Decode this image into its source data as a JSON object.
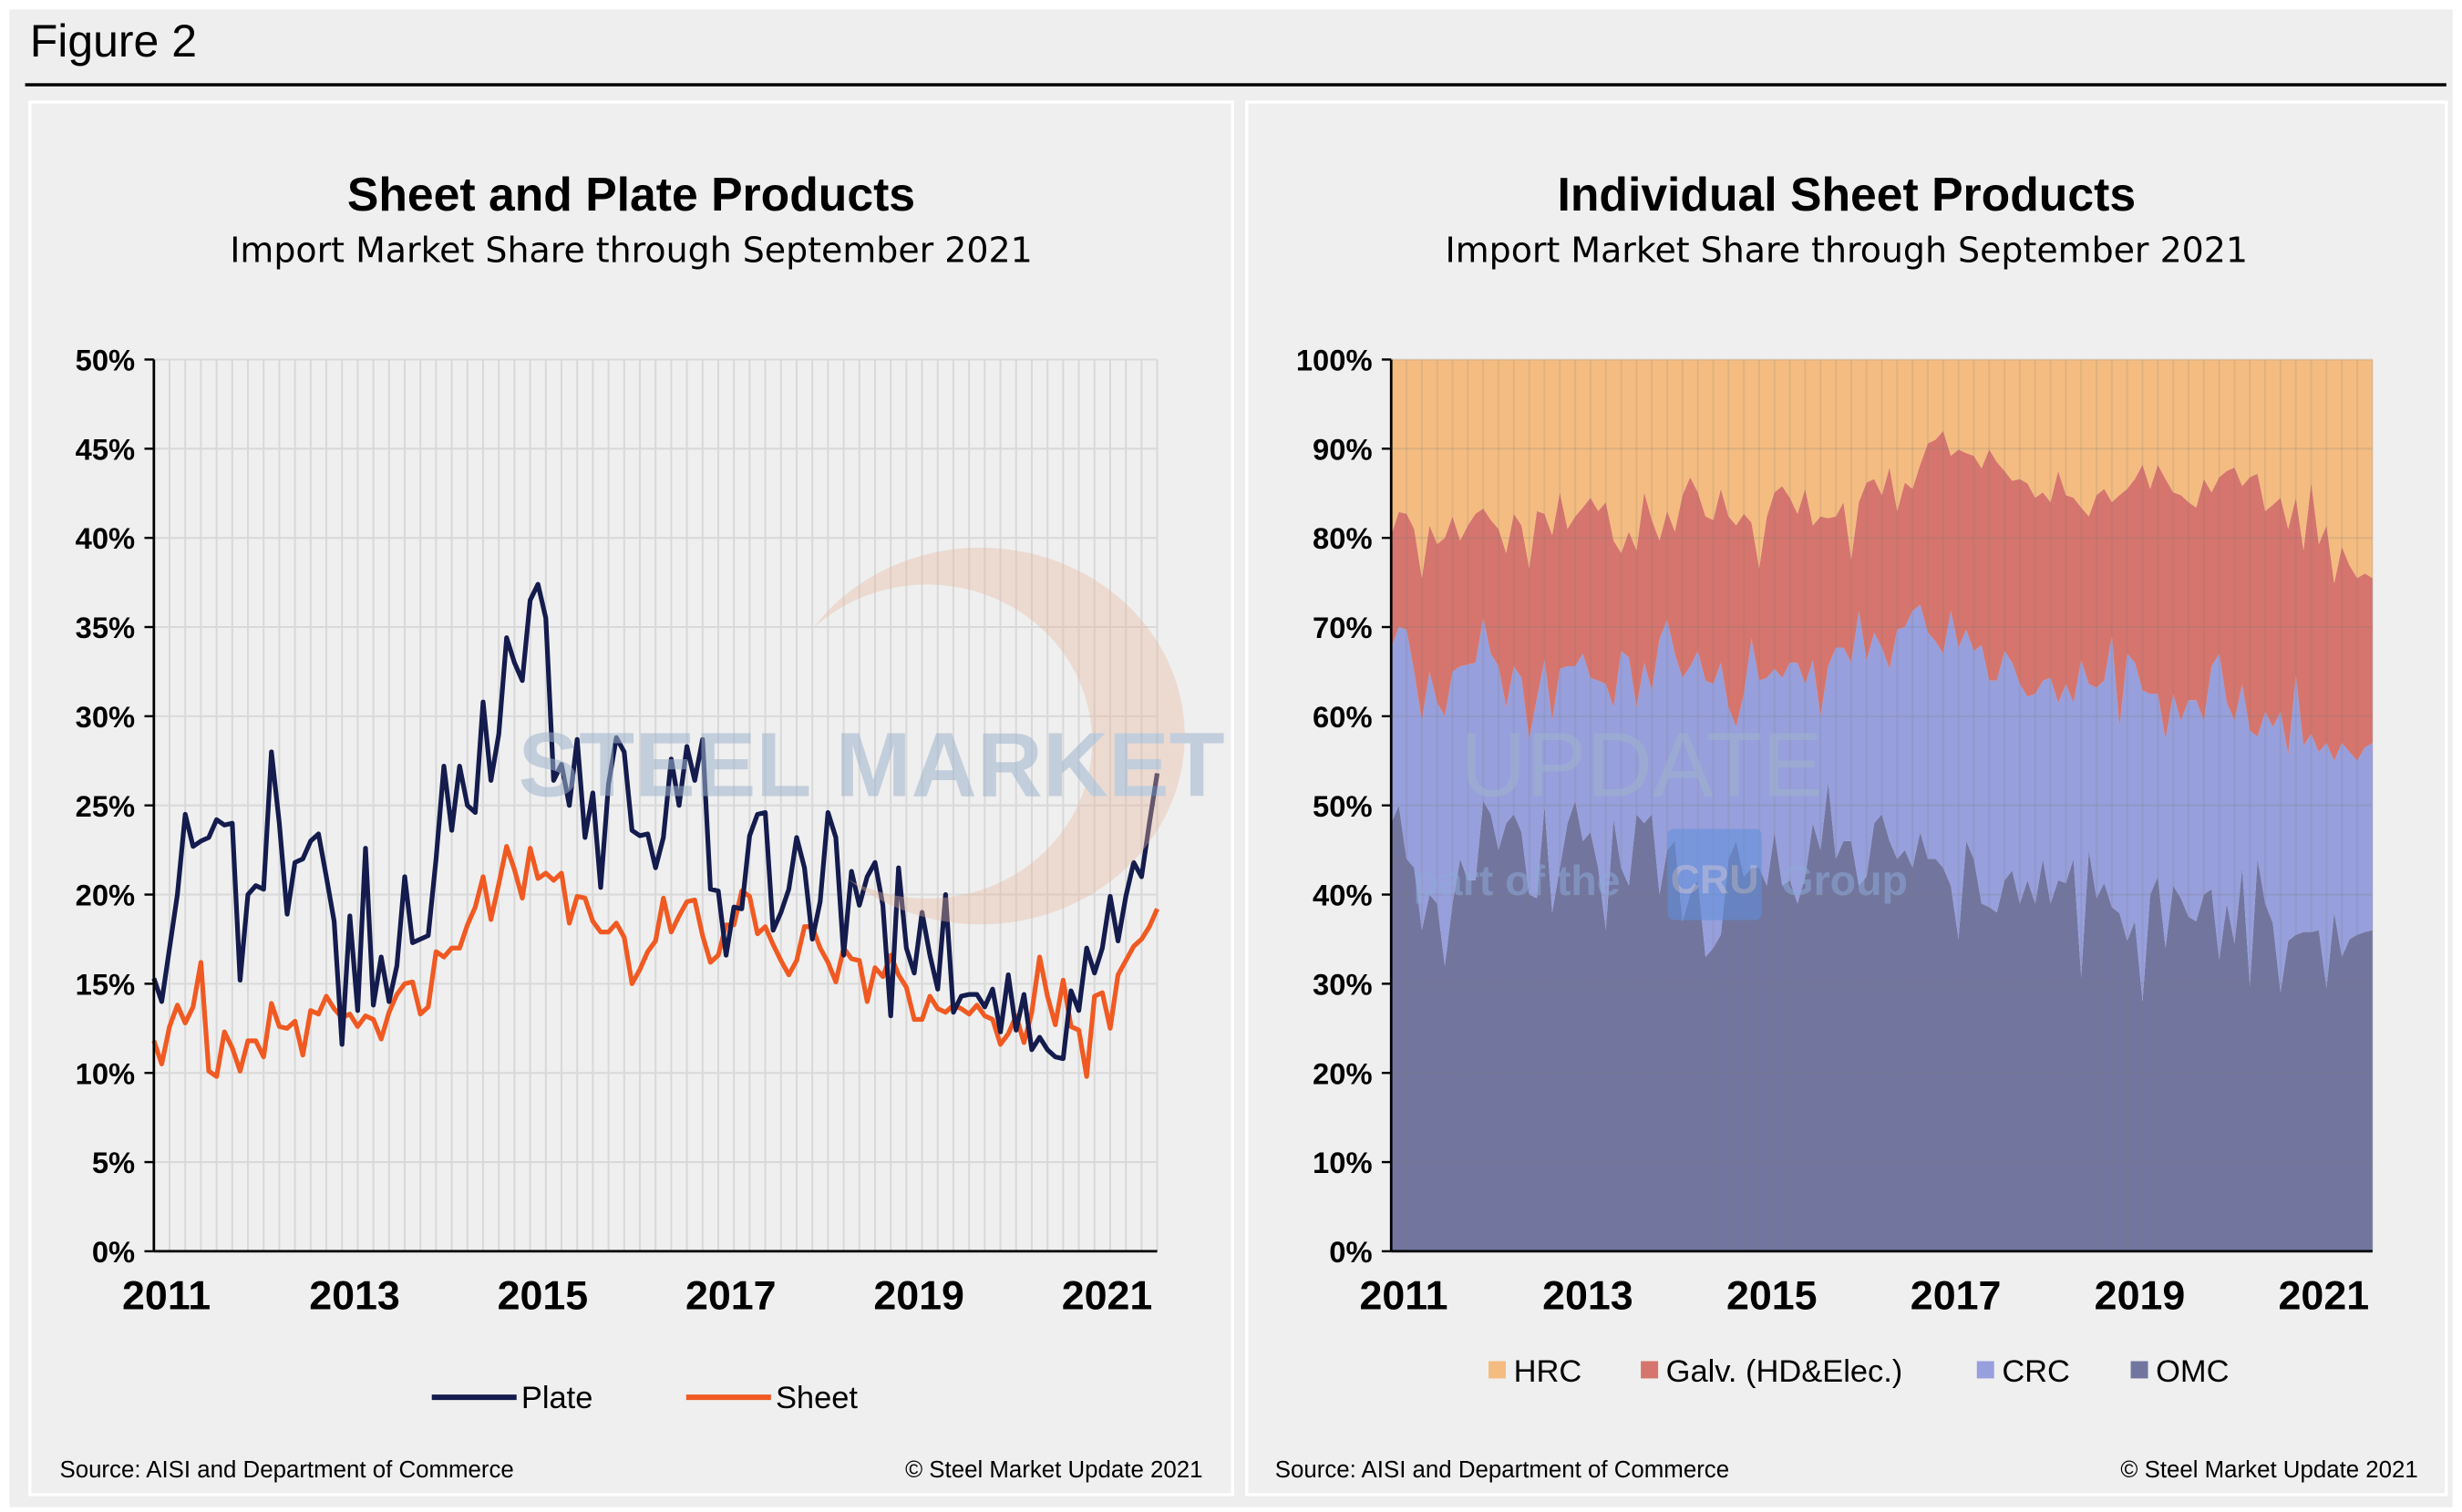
{
  "figure_title": "Figure 2",
  "watermark": {
    "brand": "STEEL MARKET UPDATE",
    "tagline_pre": "part of the",
    "tagline_logo": "CRU",
    "tagline_post": "Group"
  },
  "chart_data": [
    {
      "type": "line",
      "title": "Sheet and Plate Products",
      "subtitle": "Import Market Share through September 2021",
      "x_start": "2011-01",
      "x_frequency": "monthly",
      "x_end": "2021-09",
      "x_tick_labels": [
        "2011",
        "2013",
        "2015",
        "2017",
        "2019",
        "2021"
      ],
      "y_tick_labels": [
        "0%",
        "5%",
        "10%",
        "15%",
        "20%",
        "25%",
        "30%",
        "35%",
        "40%",
        "45%",
        "50%"
      ],
      "ylim": [
        0,
        50
      ],
      "y_unit": "%",
      "grid": true,
      "legend": "bottom",
      "series": [
        {
          "name": "Plate",
          "color": "#141B4D",
          "values": [
            15.3,
            14,
            17,
            20,
            24.5,
            22.7,
            23,
            23.2,
            24.2,
            23.9,
            24,
            15.2,
            20,
            20.5,
            20.3,
            28,
            24,
            18.9,
            21.8,
            22,
            23,
            23.4,
            21,
            18.5,
            11.6,
            18.8,
            13.5,
            22.6,
            13.8,
            16.5,
            14,
            16,
            21,
            17.3,
            17.5,
            17.7,
            22,
            27.2,
            23.6,
            27.2,
            25,
            24.6,
            30.8,
            26.4,
            29,
            34.4,
            33,
            32,
            36.5,
            37.4,
            35.5,
            26.4,
            27.3,
            25,
            28.7,
            23.2,
            25.7,
            20.4,
            26.2,
            28.8,
            28,
            23.6,
            23.3,
            23.4,
            21.5,
            23.2,
            27.6,
            25,
            28.3,
            26.4,
            28.7,
            20.3,
            20.2,
            16.6,
            19.3,
            19.2,
            23.3,
            24.5,
            24.6,
            18,
            19,
            20.3,
            23.2,
            21.5,
            17.5,
            19.6,
            24.6,
            23.2,
            16.6,
            21.3,
            19.4,
            21,
            21.8,
            19.4,
            13.2,
            21.5,
            17,
            15.6,
            19,
            16.6,
            14.7,
            20,
            13.4,
            14.3,
            14.4,
            14.4,
            13.7,
            14.7,
            12.3,
            15.5,
            12.4,
            14.4,
            11.3,
            12,
            11.3,
            10.9,
            10.8,
            14.6,
            13.5,
            17,
            15.6,
            17,
            19.9,
            17.4,
            19.9,
            21.8,
            21,
            24,
            26.8
          ]
        },
        {
          "name": "Sheet",
          "color": "#F05A22",
          "values": [
            11.8,
            10.5,
            12.6,
            13.8,
            12.8,
            13.7,
            16.2,
            10.1,
            9.8,
            12.3,
            11.4,
            10.1,
            11.8,
            11.8,
            10.9,
            13.9,
            12.6,
            12.5,
            12.9,
            11,
            13.5,
            13.3,
            14.3,
            13.6,
            13.1,
            13.3,
            12.6,
            13.2,
            13,
            11.9,
            13.4,
            14.4,
            15,
            15.1,
            13.3,
            13.7,
            16.8,
            16.5,
            17,
            17,
            18.3,
            19.3,
            21,
            18.6,
            20.6,
            22.7,
            21.4,
            19.8,
            22.6,
            20.9,
            21.2,
            20.8,
            21.2,
            18.4,
            19.9,
            19.8,
            18.5,
            17.9,
            17.9,
            18.4,
            17.6,
            15,
            15.8,
            16.8,
            17.4,
            19.8,
            17.9,
            18.8,
            19.6,
            19.7,
            17.7,
            16.2,
            16.6,
            18.3,
            18.3,
            20.2,
            19.9,
            17.8,
            18.2,
            17.2,
            16.3,
            15.5,
            16.3,
            18.2,
            18.2,
            17,
            16.2,
            15.1,
            17,
            16.4,
            16.3,
            14,
            15.9,
            15.4,
            16.6,
            15.5,
            14.8,
            13,
            13,
            14.3,
            13.6,
            13.4,
            13.8,
            13.6,
            13.3,
            13.8,
            13.2,
            13,
            11.6,
            12.2,
            13.2,
            11.7,
            13.4,
            16.5,
            14.3,
            12.7,
            15.2,
            12.6,
            12.4,
            9.8,
            14.3,
            14.5,
            12.5,
            15.5,
            16.3,
            17.1,
            17.5,
            18.2,
            19.2
          ]
        }
      ],
      "source": "Source: AISI and Department of Commerce",
      "copyright": "© Steel Market Update 2021"
    },
    {
      "type": "area",
      "stacked": "percent",
      "title": "Individual Sheet Products",
      "subtitle": "Import Market Share through September 2021",
      "x_start": "2011-01",
      "x_frequency": "monthly",
      "x_end": "2021-09",
      "x_tick_labels": [
        "2011",
        "2013",
        "2015",
        "2017",
        "2019",
        "2021"
      ],
      "y_tick_labels": [
        "0%",
        "10%",
        "20%",
        "30%",
        "40%",
        "50%",
        "60%",
        "70%",
        "80%",
        "90%",
        "100%"
      ],
      "ylim": [
        0,
        100
      ],
      "y_unit": "%",
      "grid": true,
      "legend": "bottom",
      "series": [
        {
          "name": "OMC",
          "color": "#72769F",
          "values": [
            48,
            50,
            44,
            43,
            36,
            40,
            39,
            32,
            39,
            44,
            41.6,
            41.6,
            50.5,
            49,
            45,
            48,
            49,
            47,
            40,
            39.6,
            50,
            38,
            43,
            48,
            50.5,
            46,
            47,
            43,
            36,
            48.5,
            43,
            41,
            49,
            48,
            49,
            40,
            45,
            46,
            37,
            40,
            41.6,
            33,
            34,
            35.5,
            44,
            46,
            42,
            43,
            43,
            41,
            47,
            41,
            41.6,
            39,
            42,
            48,
            45,
            52.6,
            44,
            46,
            46,
            41,
            42,
            48,
            49,
            46,
            44,
            45,
            43,
            47,
            44,
            44,
            43,
            41,
            35,
            46,
            44,
            39,
            38.6,
            38,
            41.6,
            42.7,
            39,
            41.6,
            39,
            44,
            39,
            41.6,
            41.3,
            44,
            30.7,
            45,
            39.6,
            41.3,
            38.6,
            37.9,
            34.8,
            37,
            28,
            40,
            42,
            34,
            41,
            39.6,
            37.5,
            37,
            40,
            40.6,
            32.7,
            39,
            34.5,
            43,
            29.7,
            44,
            39,
            36.8,
            29,
            34.8,
            35.5,
            35.8,
            35.8,
            36,
            29.5,
            38,
            33,
            35,
            35.5,
            35.8,
            36
          ]
        },
        {
          "name": "CRC",
          "color": "#979FDC",
          "values": [
            19.7,
            20,
            25.7,
            22,
            23.5,
            25,
            22.5,
            28,
            26,
            21.6,
            24.2,
            24.4,
            20.5,
            18,
            20.6,
            13,
            16.6,
            17.3,
            17.4,
            22.4,
            16.3,
            21.5,
            22.3,
            17.6,
            15.1,
            21,
            17.3,
            21,
            27.6,
            12.5,
            24.3,
            25.6,
            12,
            18,
            13.9,
            28.7,
            25.8,
            21,
            27.3,
            25.6,
            25.7,
            31,
            29.6,
            30.5,
            17,
            12.8,
            20.5,
            25.7,
            21,
            23.3,
            18.3,
            23.3,
            24.4,
            27,
            21.6,
            18.3,
            15,
            13,
            23.7,
            21.7,
            20,
            30.8,
            24.3,
            21.4,
            18.7,
            19.3,
            25.7,
            25,
            28.8,
            25.5,
            25.4,
            24.4,
            24,
            30.8,
            32.7,
            23.7,
            23.3,
            29,
            25.4,
            26,
            25.7,
            23.3,
            24.6,
            20.6,
            23.5,
            20,
            25.3,
            19.9,
            22.3,
            17.5,
            35.6,
            18.6,
            23.6,
            22.7,
            30.4,
            20.9,
            32.2,
            29,
            34.9,
            22.5,
            20.5,
            23.4,
            21.5,
            19.9,
            24.3,
            24.8,
            19.5,
            25,
            34.3,
            22.5,
            25,
            20.6,
            28.7,
            13.7,
            21.5,
            22,
            31.5,
            20.9,
            29.1,
            20.9,
            22.2,
            20,
            27.5,
            17,
            24,
            21,
            19.5,
            20.7,
            21
          ]
        },
        {
          "name": "Galv. (HD&Elec.)",
          "color": "#D5756D",
          "values": [
            12.6,
            12.9,
            13,
            16,
            16,
            16.4,
            17.8,
            20,
            17.4,
            14.1,
            15.6,
            16.7,
            12.3,
            15,
            15.4,
            17.3,
            17.1,
            17.1,
            19.2,
            21,
            16.4,
            20.8,
            19.8,
            15.4,
            16.8,
            16.4,
            20.2,
            19,
            20.4,
            18.7,
            11,
            14.1,
            17.6,
            19.1,
            19.1,
            11,
            12.2,
            13.7,
            20.5,
            21.2,
            17.8,
            18.4,
            18.4,
            19.5,
            21.4,
            22.6,
            20.2,
            13,
            12.6,
            18.1,
            19.8,
            21.5,
            18.5,
            16.7,
            21.9,
            15.1,
            22.4,
            16.6,
            14.7,
            16.3,
            11.6,
            12.2,
            19.9,
            17.2,
            17.1,
            22.6,
            13.3,
            16.2,
            13.7,
            15.7,
            21.2,
            22.6,
            25,
            17.4,
            22.2,
            19.8,
            21.9,
            19.8,
            25.9,
            24.5,
            20.2,
            20.4,
            23,
            23.9,
            22,
            21.1,
            19.7,
            26,
            21.2,
            23,
            17.1,
            18.8,
            21.6,
            21.5,
            15,
            26,
            18.5,
            20.6,
            25.3,
            23,
            25.7,
            29.2,
            22.6,
            25.3,
            22.2,
            21.6,
            27.1,
            19.5,
            19.8,
            26,
            28.4,
            22.2,
            28.4,
            29.5,
            22.5,
            24.9,
            24,
            25.3,
            19.9,
            21.9,
            28.2,
            23.3,
            24.4,
            19.9,
            22,
            20.9,
            20.5,
            19.5,
            18.5
          ]
        },
        {
          "name": "HRC",
          "color": "#F4BC80",
          "values": [
            19.7,
            17.1,
            17.3,
            19,
            24.5,
            18.6,
            20.7,
            20,
            17.6,
            20.3,
            18.6,
            17.3,
            16.7,
            18,
            19,
            21.7,
            17.3,
            18.6,
            23.4,
            17,
            17.3,
            19.7,
            14.9,
            19,
            17.6,
            16.6,
            15.5,
            17,
            16,
            20.3,
            21.7,
            19.3,
            21.4,
            14.9,
            18,
            20.3,
            17,
            19.3,
            15.2,
            13.2,
            14.9,
            17.6,
            18,
            14.5,
            17.6,
            18.6,
            17.3,
            18.3,
            23.4,
            17.6,
            14.9,
            14.2,
            15.5,
            17.3,
            14.5,
            18.6,
            17.6,
            17.8,
            17.6,
            16,
            22.4,
            16,
            13.8,
            13.4,
            15.2,
            12.1,
            17,
            13.8,
            14.5,
            11.8,
            9.4,
            9,
            8,
            10.8,
            10.1,
            10.5,
            10.8,
            12.2,
            10.1,
            11.5,
            12.5,
            13.6,
            13.4,
            13.9,
            15.5,
            14.9,
            16,
            12.5,
            15.2,
            15.5,
            16.6,
            17.6,
            15.2,
            14.5,
            16,
            15.2,
            14.5,
            13.4,
            11.8,
            14.5,
            11.8,
            13.4,
            14.9,
            15.2,
            16,
            16.6,
            13.4,
            14.9,
            13.2,
            12.5,
            12.1,
            14.2,
            13.2,
            12.8,
            17,
            16.3,
            15.5,
            19,
            15.5,
            21.4,
            13.8,
            20.7,
            18.6,
            25.1,
            21,
            23.1,
            24.5,
            24,
            24.5
          ]
        }
      ],
      "legend_order": [
        "HRC",
        "Galv. (HD&Elec.)",
        "CRC",
        "OMC"
      ],
      "source": "Source: AISI and Department of Commerce",
      "copyright": "© Steel Market Update 2021"
    }
  ]
}
